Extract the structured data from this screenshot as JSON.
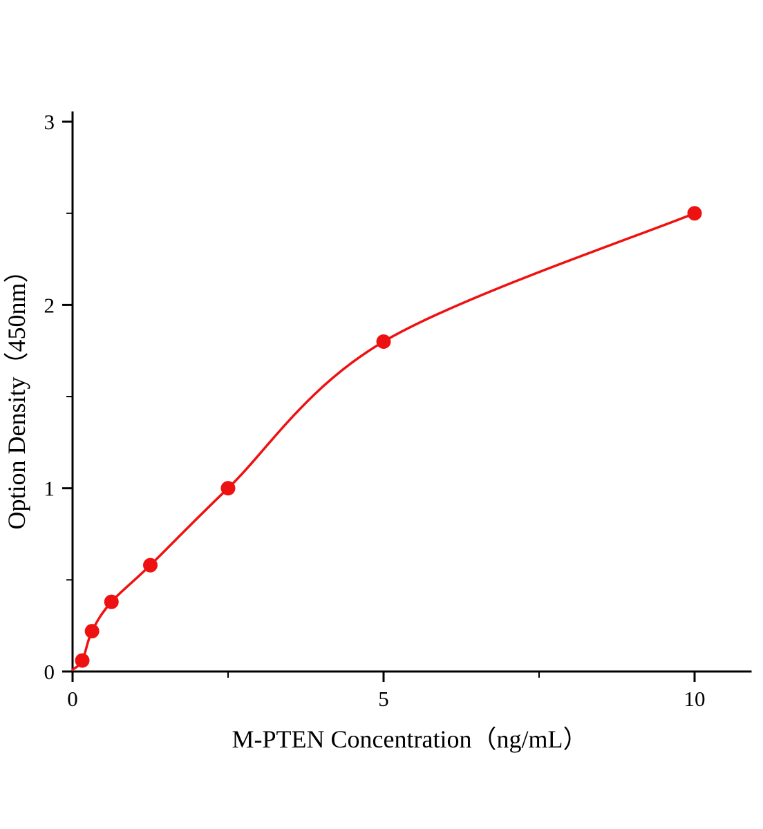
{
  "chart_data": {
    "type": "scatter",
    "subtype": "scatter-with-smooth-fit-curve",
    "title": "",
    "xlabel": "M-PTEN Concentration（ng/mL）",
    "ylabel": "Option Density（450nm）",
    "x": [
      0.156,
      0.3125,
      0.625,
      1.25,
      2.5,
      5,
      10
    ],
    "y": [
      0.06,
      0.22,
      0.38,
      0.58,
      1.0,
      1.8,
      2.5
    ],
    "curve_start": [
      0,
      0.01
    ],
    "xlim": [
      0,
      10.9
    ],
    "ylim": [
      0,
      3.05
    ],
    "x_major_ticks": [
      0,
      5,
      10
    ],
    "x_minor_ticks": [
      2.5,
      7.5
    ],
    "y_major_ticks": [
      0,
      1,
      2,
      3
    ],
    "y_minor_ticks": [
      0.5,
      1.5,
      2.5
    ],
    "grid": false,
    "legend_position": "none",
    "line_color": "#ee1111",
    "marker_color": "#ee1111",
    "axis_color": "#000000",
    "marker_radius": 10.5,
    "line_width": 3.5
  }
}
